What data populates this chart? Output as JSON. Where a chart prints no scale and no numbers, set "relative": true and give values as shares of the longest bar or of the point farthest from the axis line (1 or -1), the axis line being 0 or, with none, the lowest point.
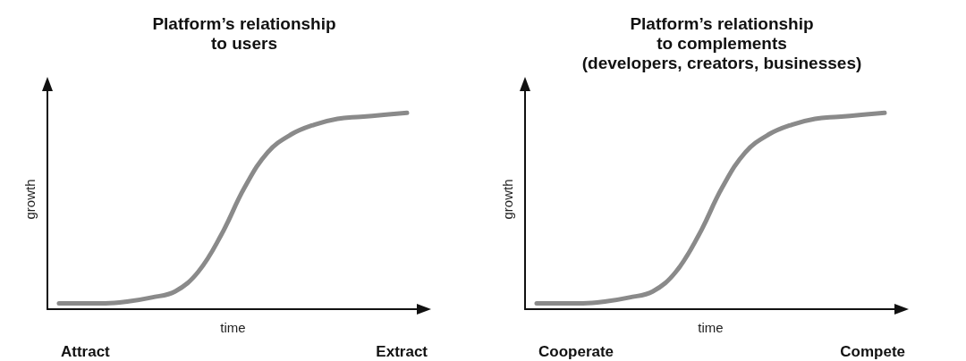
{
  "chart_data": [
    {
      "type": "line",
      "title": "Platform’s relationship\nto users",
      "xlabel": "time",
      "ylabel": "growth",
      "relative": true,
      "categories": [
        null,
        null,
        null,
        null,
        null,
        null,
        null,
        null,
        null,
        null,
        null,
        null,
        null,
        null,
        null,
        null
      ],
      "series": [
        {
          "color": "#8a8a8a",
          "values": [
            0.03,
            0.03,
            0.03,
            0.04,
            0.06,
            0.09,
            0.19,
            0.38,
            0.62,
            0.8,
            0.89,
            0.94,
            0.97,
            0.98,
            0.99,
            1
          ]
        }
      ],
      "annotations": [
        "Attract",
        "Extract"
      ],
      "grid": false,
      "marker": "none",
      "line_style": "solid"
    },
    {
      "type": "line",
      "title": "Platform’s relationship\nto complements\n(developers, creators, businesses)",
      "xlabel": "time",
      "ylabel": "growth",
      "relative": true,
      "categories": [
        null,
        null,
        null,
        null,
        null,
        null,
        null,
        null,
        null,
        null,
        null,
        null,
        null,
        null,
        null,
        null
      ],
      "series": [
        {
          "color": "#8a8a8a",
          "values": [
            0.03,
            0.03,
            0.03,
            0.04,
            0.06,
            0.09,
            0.19,
            0.38,
            0.62,
            0.8,
            0.89,
            0.94,
            0.97,
            0.98,
            0.99,
            1
          ]
        }
      ],
      "annotations": [
        "Cooperate",
        "Compete"
      ],
      "grid": false,
      "marker": "none",
      "line_style": "solid"
    }
  ]
}
